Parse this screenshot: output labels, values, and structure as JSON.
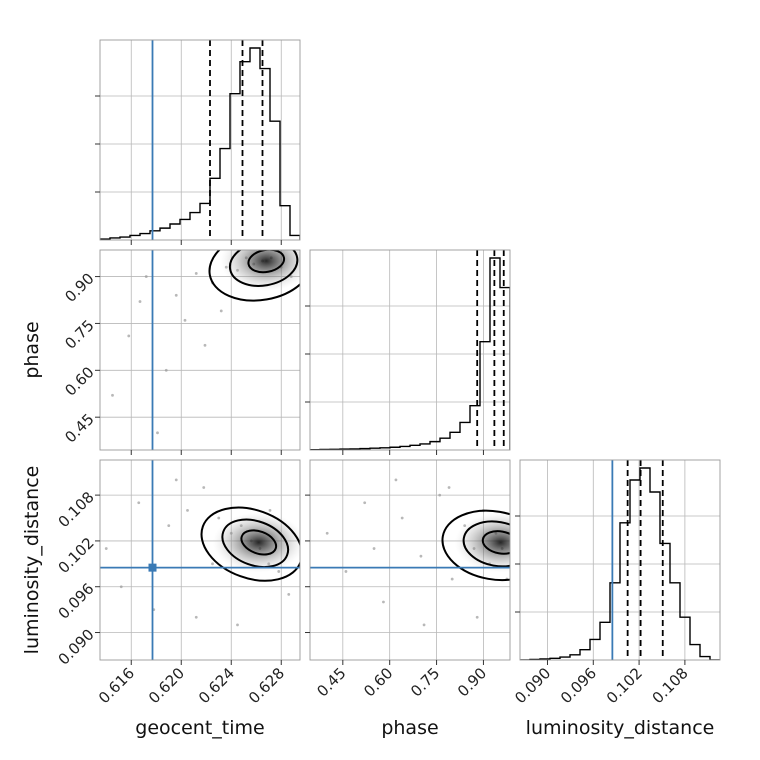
{
  "chart_data": {
    "type": "corner",
    "parameters": [
      "geocent_time",
      "phase",
      "luminosity_distance"
    ],
    "axis_labels": [
      "geocent_time",
      "phase",
      "luminosity_distance"
    ],
    "ranges": {
      "geocent_time": [
        0.6135,
        0.6295
      ],
      "phase": [
        0.345,
        0.985
      ],
      "luminosity_distance": [
        0.0864,
        0.1126
      ]
    },
    "ticks": {
      "geocent_time": [
        "0.616",
        "0.620",
        "0.624",
        "0.628"
      ],
      "phase": [
        "0.45",
        "0.60",
        "0.75",
        "0.90"
      ],
      "luminosity_distance": [
        "0.090",
        "0.096",
        "0.102",
        "0.108"
      ]
    },
    "truth": {
      "geocent_time": 0.6177,
      "phase": null,
      "luminosity_distance": 0.0985
    },
    "quantiles": {
      "geocent_time": [
        0.6223,
        0.6249,
        0.6265
      ],
      "phase": [
        0.88,
        0.935,
        0.965
      ],
      "luminosity_distance": [
        0.1005,
        0.1022,
        0.1051
      ]
    },
    "histograms": {
      "geocent_time": {
        "edges": [
          0.6135,
          0.6143,
          0.6151,
          0.6159,
          0.6167,
          0.6175,
          0.6183,
          0.6191,
          0.6199,
          0.6207,
          0.6215,
          0.6223,
          0.6231,
          0.6239,
          0.6247,
          0.6255,
          0.6263,
          0.6271,
          0.6279,
          0.6287,
          0.6295
        ],
        "counts": [
          0.4,
          0.9,
          1.3,
          2,
          2.8,
          4,
          5.2,
          7,
          9,
          12,
          16,
          27,
          40,
          64,
          78,
          84,
          75,
          52,
          15,
          2
        ]
      },
      "phase": {
        "edges": [
          0.345,
          0.377,
          0.409,
          0.441,
          0.473,
          0.505,
          0.537,
          0.569,
          0.601,
          0.633,
          0.665,
          0.697,
          0.729,
          0.761,
          0.793,
          0.825,
          0.857,
          0.889,
          0.921,
          0.953,
          0.985
        ],
        "counts": [
          0.3,
          0.5,
          0.7,
          0.9,
          1.1,
          1.4,
          1.8,
          2.2,
          2.8,
          3.6,
          4.8,
          6.2,
          8.5,
          12,
          18,
          28,
          45,
          110,
          195,
          165
        ]
      },
      "luminosity_distance": {
        "edges": [
          0.0864,
          0.08771,
          0.08902,
          0.09033,
          0.09164,
          0.09295,
          0.09426,
          0.09557,
          0.09688,
          0.09819,
          0.0995,
          0.10081,
          0.10212,
          0.10343,
          0.10474,
          0.10605,
          0.10736,
          0.10867,
          0.10998,
          0.11129,
          0.1126
        ],
        "counts": [
          0,
          0.3,
          0.6,
          1,
          1.7,
          3,
          6,
          12,
          22,
          45,
          80,
          105,
          112,
          98,
          68,
          45,
          25,
          9,
          2,
          0
        ]
      }
    },
    "scatter": {
      "geocent_time_vs_phase": {
        "core": [
          0.6268,
          0.95
        ],
        "contour_levels": 3,
        "points": [
          [
            0.6145,
            0.52
          ],
          [
            0.6158,
            0.71
          ],
          [
            0.6172,
            0.9
          ],
          [
            0.6188,
            0.6
          ],
          [
            0.6196,
            0.84
          ],
          [
            0.6212,
            0.91
          ],
          [
            0.6225,
            0.88
          ],
          [
            0.6236,
            0.93
          ],
          [
            0.6245,
            0.92
          ],
          [
            0.6252,
            0.96
          ],
          [
            0.6258,
            0.94
          ],
          [
            0.6265,
            0.95
          ],
          [
            0.6272,
            0.96
          ],
          [
            0.628,
            0.93
          ],
          [
            0.6288,
            0.9
          ],
          [
            0.6203,
            0.76
          ],
          [
            0.6181,
            0.4
          ],
          [
            0.6232,
            0.79
          ],
          [
            0.6219,
            0.68
          ],
          [
            0.6167,
            0.82
          ]
        ]
      },
      "geocent_time_vs_luminosity_distance": {
        "core": [
          0.6262,
          0.1018
        ],
        "contour_levels": 3,
        "points": [
          [
            0.614,
            0.101
          ],
          [
            0.6152,
            0.096
          ],
          [
            0.6166,
            0.107
          ],
          [
            0.6178,
            0.093
          ],
          [
            0.619,
            0.104
          ],
          [
            0.6205,
            0.106
          ],
          [
            0.6218,
            0.109
          ],
          [
            0.623,
            0.105
          ],
          [
            0.624,
            0.103
          ],
          [
            0.6248,
            0.104
          ],
          [
            0.6256,
            0.102
          ],
          [
            0.6263,
            0.101
          ],
          [
            0.627,
            0.099
          ],
          [
            0.6278,
            0.098
          ],
          [
            0.6286,
            0.095
          ],
          [
            0.6212,
            0.092
          ],
          [
            0.6196,
            0.11
          ],
          [
            0.6245,
            0.091
          ],
          [
            0.6225,
            0.099
          ],
          [
            0.6271,
            0.106
          ]
        ]
      },
      "phase_vs_luminosity_distance": {
        "core": [
          0.955,
          0.1018
        ],
        "contour_levels": 3,
        "points": [
          [
            0.4,
            0.103
          ],
          [
            0.46,
            0.098
          ],
          [
            0.52,
            0.107
          ],
          [
            0.58,
            0.094
          ],
          [
            0.64,
            0.105
          ],
          [
            0.7,
            0.1
          ],
          [
            0.76,
            0.108
          ],
          [
            0.8,
            0.097
          ],
          [
            0.84,
            0.104
          ],
          [
            0.87,
            0.101
          ],
          [
            0.9,
            0.106
          ],
          [
            0.92,
            0.099
          ],
          [
            0.94,
            0.103
          ],
          [
            0.96,
            0.101
          ],
          [
            0.975,
            0.097
          ],
          [
            0.71,
            0.091
          ],
          [
            0.62,
            0.11
          ],
          [
            0.88,
            0.092
          ],
          [
            0.55,
            0.101
          ],
          [
            0.79,
            0.109
          ]
        ]
      }
    }
  }
}
